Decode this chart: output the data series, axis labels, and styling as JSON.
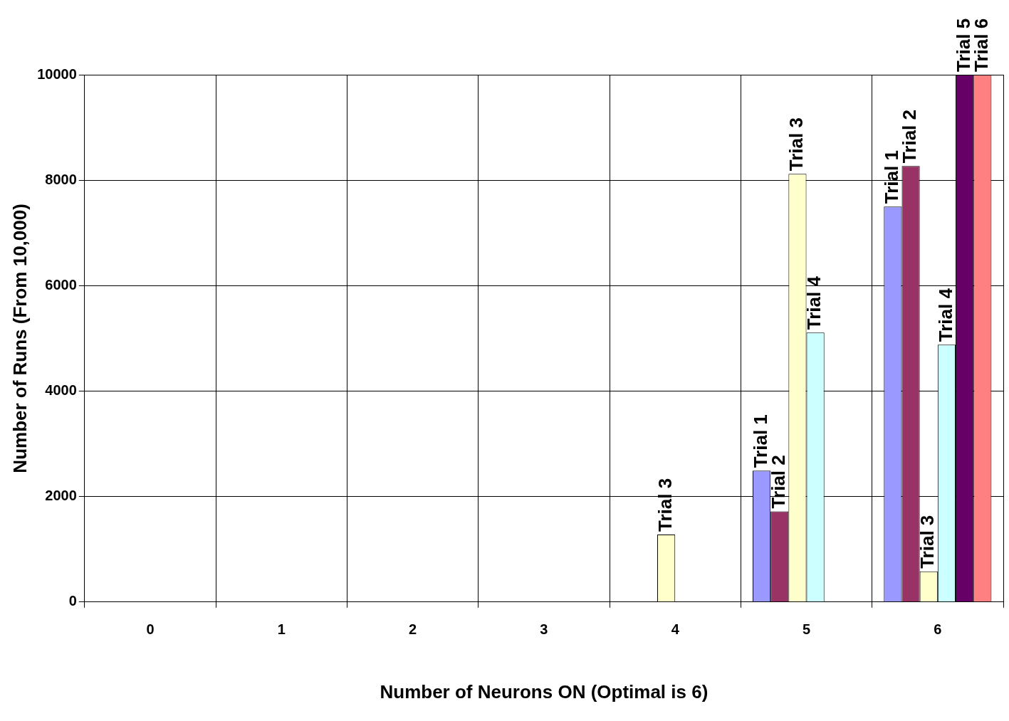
{
  "chart_data": {
    "type": "bar",
    "xlabel": "Number of Neurons ON (Optimal is 6)",
    "ylabel": "Number of Runs (From 10,000)",
    "categories": [
      "0",
      "1",
      "2",
      "3",
      "4",
      "5",
      "6"
    ],
    "series": [
      {
        "name": "Trial 1",
        "color": "#9999ff",
        "values": [
          0,
          0,
          0,
          0,
          0,
          2490,
          7500
        ]
      },
      {
        "name": "Trial 2",
        "color": "#993366",
        "values": [
          0,
          0,
          0,
          0,
          0,
          1720,
          8270
        ]
      },
      {
        "name": "Trial 3",
        "color": "#ffffcc",
        "values": [
          0,
          0,
          0,
          0,
          1280,
          8120,
          580
        ]
      },
      {
        "name": "Trial 4",
        "color": "#ccffff",
        "values": [
          0,
          0,
          0,
          0,
          0,
          5110,
          4880
        ]
      },
      {
        "name": "Trial 5",
        "color": "#660066",
        "values": [
          0,
          0,
          0,
          0,
          0,
          0,
          10000
        ]
      },
      {
        "name": "Trial 6",
        "color": "#ff8080",
        "values": [
          0,
          0,
          0,
          0,
          0,
          0,
          10000
        ]
      }
    ],
    "ylim": [
      0,
      10000
    ],
    "yticks": [
      0,
      2000,
      4000,
      6000,
      8000,
      10000
    ],
    "grid": true,
    "legend": false
  }
}
